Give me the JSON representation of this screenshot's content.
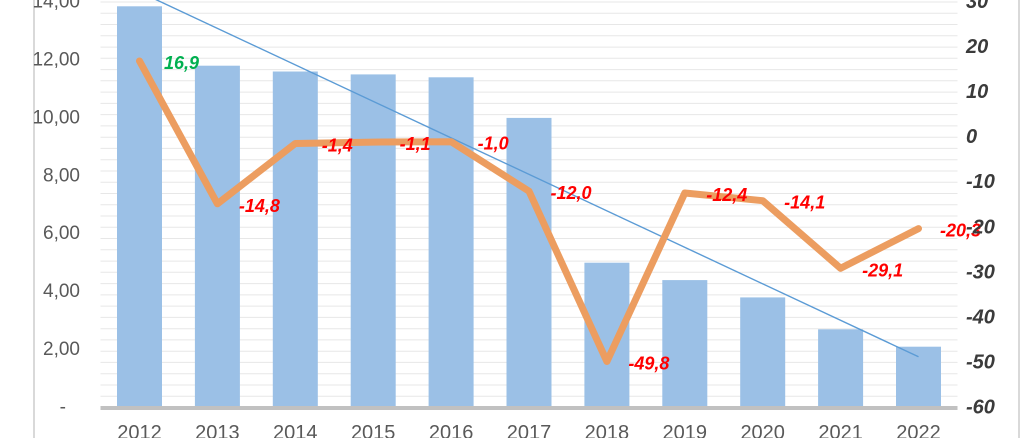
{
  "chart_data": {
    "type": "combo",
    "categories": [
      "2012",
      "2013",
      "2014",
      "2015",
      "2016",
      "2017",
      "2018",
      "2019",
      "2020",
      "2021",
      "2022"
    ],
    "series": [
      {
        "name": "volume-bars",
        "type": "bar",
        "axis": "left",
        "values": [
          13.85,
          11.8,
          11.6,
          11.5,
          11.4,
          10.0,
          5.0,
          4.4,
          3.8,
          2.7,
          2.1
        ]
      },
      {
        "name": "growth-line",
        "type": "line",
        "axis": "right",
        "values": [
          16.9,
          -14.8,
          -1.4,
          -1.1,
          -1.0,
          -12.0,
          -49.8,
          -12.4,
          -14.1,
          -29.1,
          -20.3
        ],
        "labels": [
          "16,9",
          "-14,8",
          "-1,4",
          "-1,1",
          "-1,0",
          "-12,0",
          "-49,8",
          "-12,4",
          "-14,1",
          "-29,1",
          "-20,3"
        ]
      }
    ],
    "trendline": {
      "type": "linear",
      "series": "volume-bars",
      "axis": "left",
      "start_value": 14.35,
      "end_value": 1.75
    },
    "axes": {
      "left": {
        "range": [
          0,
          14
        ],
        "ticks": [
          {
            "value": 14,
            "label": "14,00"
          },
          {
            "value": 12,
            "label": "12,00"
          },
          {
            "value": 10,
            "label": "10,00"
          },
          {
            "value": 8,
            "label": "8,00"
          },
          {
            "value": 6,
            "label": "6,00"
          },
          {
            "value": 4,
            "label": "4,00"
          },
          {
            "value": 2,
            "label": "2,00"
          },
          {
            "value": 0,
            "label": "-"
          }
        ]
      },
      "right": {
        "range": [
          -60,
          30
        ],
        "ticks": [
          {
            "value": 30,
            "label": "30"
          },
          {
            "value": 20,
            "label": "20"
          },
          {
            "value": 10,
            "label": "10"
          },
          {
            "value": 0,
            "label": "0"
          },
          {
            "value": -10,
            "label": "-10"
          },
          {
            "value": -20,
            "label": "-20"
          },
          {
            "value": -30,
            "label": "-30"
          },
          {
            "value": -40,
            "label": "-40"
          },
          {
            "value": -50,
            "label": "-50"
          },
          {
            "value": -60,
            "label": "-60"
          }
        ]
      }
    },
    "grid": {
      "on": true,
      "minor_step_right_axis": 2.5
    },
    "legend": "none",
    "title": ""
  },
  "colors": {
    "bar": "#9BC0E6",
    "line": "#EC9D60",
    "trendline": "#5B9BD5",
    "grid": "#E7E7E7",
    "axis_line": "#C1C1C1",
    "chart_border": "#D9D9D9",
    "label_first": "#00B050",
    "label_rest": "#FF0000",
    "background": "#FFFFFF"
  }
}
